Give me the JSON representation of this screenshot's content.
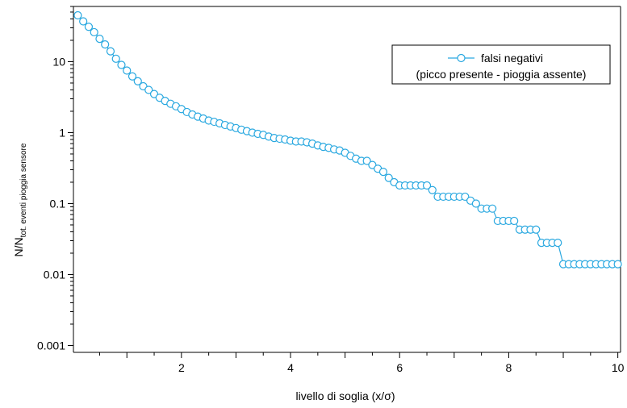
{
  "chart_data": {
    "type": "line",
    "xlabel": "livello di soglia (x/σ)",
    "ylabel_main": "N/N",
    "ylabel_sub": "tot. eventi pioggia sensore",
    "yscale": "log",
    "xlim": [
      0.02,
      10.05
    ],
    "ylim": [
      0.0008,
      60
    ],
    "xticks": [
      2,
      4,
      6,
      8,
      10
    ],
    "xtick_labels": [
      "2",
      "4",
      "6",
      "8",
      "10"
    ],
    "yticks": [
      0.001,
      0.01,
      0.1,
      1,
      10
    ],
    "ytick_labels": [
      "0.001",
      "0.01",
      "0.1",
      "1",
      "10"
    ],
    "grid": false,
    "legend_position": "top-right",
    "legend_lines": [
      "falsi negativi",
      "(picco presente - pioggia assente)"
    ],
    "series": [
      {
        "name": "falsi negativi (picco presente - pioggia assente)",
        "color": "#29a8e0",
        "marker": "open-circle",
        "x": [
          0.1,
          0.2,
          0.3,
          0.4,
          0.5,
          0.6,
          0.7,
          0.8,
          0.9,
          1.0,
          1.1,
          1.2,
          1.3,
          1.4,
          1.5,
          1.6,
          1.7,
          1.8,
          1.9,
          2.0,
          2.1,
          2.2,
          2.3,
          2.4,
          2.5,
          2.6,
          2.7,
          2.8,
          2.9,
          3.0,
          3.1,
          3.2,
          3.3,
          3.4,
          3.5,
          3.6,
          3.7,
          3.8,
          3.9,
          4.0,
          4.1,
          4.2,
          4.3,
          4.4,
          4.5,
          4.6,
          4.7,
          4.8,
          4.9,
          5.0,
          5.1,
          5.2,
          5.3,
          5.4,
          5.5,
          5.6,
          5.7,
          5.8,
          5.9,
          6.0,
          6.1,
          6.2,
          6.3,
          6.4,
          6.5,
          6.6,
          6.7,
          6.8,
          6.9,
          7.0,
          7.1,
          7.2,
          7.3,
          7.4,
          7.5,
          7.6,
          7.7,
          7.8,
          7.9,
          8.0,
          8.1,
          8.2,
          8.3,
          8.4,
          8.5,
          8.6,
          8.7,
          8.8,
          8.9,
          9.0,
          9.1,
          9.2,
          9.3,
          9.4,
          9.5,
          9.6,
          9.7,
          9.8,
          9.9,
          10.0
        ],
        "y": [
          45,
          37,
          31,
          26,
          21,
          17.5,
          14,
          11,
          9,
          7.5,
          6.2,
          5.3,
          4.5,
          4.0,
          3.5,
          3.1,
          2.8,
          2.55,
          2.35,
          2.15,
          1.95,
          1.8,
          1.68,
          1.58,
          1.48,
          1.42,
          1.35,
          1.28,
          1.22,
          1.16,
          1.1,
          1.05,
          1.0,
          0.96,
          0.93,
          0.88,
          0.84,
          0.82,
          0.8,
          0.77,
          0.75,
          0.75,
          0.73,
          0.7,
          0.66,
          0.63,
          0.61,
          0.58,
          0.56,
          0.52,
          0.47,
          0.43,
          0.4,
          0.4,
          0.35,
          0.31,
          0.28,
          0.23,
          0.2,
          0.18,
          0.18,
          0.18,
          0.18,
          0.18,
          0.18,
          0.155,
          0.125,
          0.125,
          0.125,
          0.125,
          0.125,
          0.125,
          0.11,
          0.1,
          0.085,
          0.085,
          0.085,
          0.057,
          0.057,
          0.057,
          0.057,
          0.043,
          0.043,
          0.043,
          0.043,
          0.028,
          0.028,
          0.028,
          0.028,
          0.014,
          0.014,
          0.014,
          0.014,
          0.014,
          0.014,
          0.014,
          0.014,
          0.014,
          0.014,
          0.014
        ]
      }
    ]
  }
}
